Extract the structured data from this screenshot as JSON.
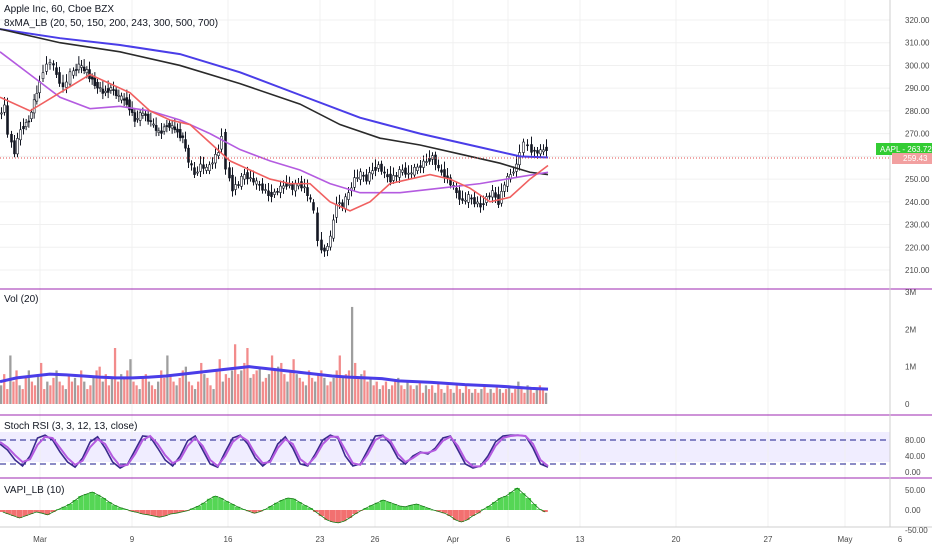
{
  "header": {
    "symbol_line": "Apple Inc, 60, Cboe BZX",
    "indicator_line": "8xMA_LB (20, 50, 150, 200, 243, 300, 500, 700)"
  },
  "price_panel": {
    "y_ticks": [
      "320.00",
      "310.00",
      "300.00",
      "290.00",
      "280.00",
      "270.00",
      "260.00",
      "250.00",
      "240.00",
      "230.00",
      "220.00",
      "210.00"
    ],
    "last_price_label": "AAPL - 263.72",
    "ref_price_label": "259.43",
    "colors": {
      "up_candle": "#131722",
      "ma_blue": "#4a3de8",
      "ma_black": "#2a2a2a",
      "ma_purple": "#b45be0",
      "ma_red": "#f06060",
      "last_badge": "#33cc33",
      "ref_line": "#e04848"
    }
  },
  "volume_panel": {
    "title": "Vol (20)",
    "y_ticks": [
      "3M",
      "2M",
      "1M",
      "0"
    ]
  },
  "stoch_panel": {
    "title": "Stoch RSI (3, 3, 12, 13, close)",
    "y_ticks": [
      "80.00",
      "40.00",
      "0.00"
    ]
  },
  "vapi_panel": {
    "title": "VAPI_LB (10)",
    "y_ticks": [
      "50.00",
      "0.00",
      "-50.00"
    ]
  },
  "x_axis": {
    "labels": [
      "Mar",
      "9",
      "16",
      "23",
      "26",
      "Apr",
      "6",
      "13",
      "20",
      "27",
      "May",
      "6"
    ]
  },
  "chart_data": [
    {
      "type": "line",
      "panel": "price",
      "title": "Apple Inc, 60, Cboe BZX",
      "ylim": [
        205,
        325
      ],
      "series": [
        {
          "name": "8xMA_LB (20, 50, 150, 200, 243, 300, 500, 700)",
          "values": []
        }
      ],
      "price_path": [
        [
          0,
          278
        ],
        [
          6,
          282
        ],
        [
          10,
          270
        ],
        [
          16,
          262
        ],
        [
          22,
          272
        ],
        [
          30,
          276
        ],
        [
          38,
          288
        ],
        [
          45,
          298
        ],
        [
          52,
          302
        ],
        [
          58,
          296
        ],
        [
          65,
          290
        ],
        [
          72,
          296
        ],
        [
          80,
          300
        ],
        [
          88,
          297
        ],
        [
          96,
          292
        ],
        [
          104,
          288
        ],
        [
          112,
          290
        ],
        [
          120,
          286
        ],
        [
          128,
          284
        ],
        [
          136,
          276
        ],
        [
          144,
          279
        ],
        [
          152,
          275
        ],
        [
          160,
          270
        ],
        [
          168,
          274
        ],
        [
          176,
          272
        ],
        [
          184,
          268
        ],
        [
          190,
          258
        ],
        [
          196,
          252
        ],
        [
          202,
          256
        ],
        [
          208,
          254
        ],
        [
          214,
          258
        ],
        [
          220,
          262
        ],
        [
          224,
          270
        ],
        [
          228,
          255
        ],
        [
          234,
          246
        ],
        [
          240,
          248
        ],
        [
          246,
          252
        ],
        [
          252,
          250
        ],
        [
          258,
          248
        ],
        [
          264,
          246
        ],
        [
          270,
          243
        ],
        [
          276,
          244
        ],
        [
          282,
          246
        ],
        [
          288,
          248
        ],
        [
          294,
          246
        ],
        [
          300,
          248
        ],
        [
          306,
          246
        ],
        [
          312,
          240
        ],
        [
          316,
          236
        ],
        [
          320,
          222
        ],
        [
          326,
          218
        ],
        [
          332,
          224
        ],
        [
          338,
          240
        ],
        [
          344,
          238
        ],
        [
          350,
          244
        ],
        [
          356,
          250
        ],
        [
          362,
          252
        ],
        [
          368,
          250
        ],
        [
          374,
          254
        ],
        [
          380,
          256
        ],
        [
          386,
          252
        ],
        [
          392,
          250
        ],
        [
          398,
          252
        ],
        [
          404,
          254
        ],
        [
          410,
          252
        ],
        [
          416,
          254
        ],
        [
          422,
          256
        ],
        [
          428,
          258
        ],
        [
          434,
          260
        ],
        [
          440,
          254
        ],
        [
          446,
          252
        ],
        [
          452,
          248
        ],
        [
          458,
          244
        ],
        [
          464,
          240
        ],
        [
          470,
          242
        ],
        [
          476,
          240
        ],
        [
          482,
          238
        ],
        [
          488,
          242
        ],
        [
          494,
          244
        ],
        [
          500,
          240
        ],
        [
          506,
          248
        ],
        [
          512,
          252
        ],
        [
          518,
          256
        ],
        [
          522,
          262
        ],
        [
          526,
          266
        ],
        [
          530,
          264
        ],
        [
          536,
          262
        ],
        [
          542,
          262
        ],
        [
          548,
          263.7
        ]
      ],
      "moving_averages": {
        "blue": [
          [
            0,
            316
          ],
          [
            60,
            312
          ],
          [
            120,
            309
          ],
          [
            180,
            305
          ],
          [
            240,
            297
          ],
          [
            300,
            287
          ],
          [
            360,
            277
          ],
          [
            420,
            270
          ],
          [
            480,
            264
          ],
          [
            520,
            260
          ],
          [
            548,
            259.5
          ]
        ],
        "black": [
          [
            0,
            316
          ],
          [
            60,
            310
          ],
          [
            120,
            306
          ],
          [
            180,
            300
          ],
          [
            240,
            292
          ],
          [
            300,
            283
          ],
          [
            340,
            274
          ],
          [
            380,
            268
          ],
          [
            420,
            265
          ],
          [
            460,
            261
          ],
          [
            500,
            257
          ],
          [
            530,
            253
          ],
          [
            548,
            252
          ]
        ],
        "purple": [
          [
            0,
            306
          ],
          [
            30,
            296
          ],
          [
            60,
            286
          ],
          [
            90,
            281
          ],
          [
            120,
            282
          ],
          [
            150,
            280
          ],
          [
            180,
            276
          ],
          [
            210,
            270
          ],
          [
            240,
            263
          ],
          [
            270,
            258
          ],
          [
            300,
            254
          ],
          [
            330,
            248
          ],
          [
            360,
            244
          ],
          [
            400,
            244
          ],
          [
            440,
            246
          ],
          [
            480,
            248
          ],
          [
            520,
            251
          ],
          [
            548,
            253
          ]
        ],
        "red": [
          [
            0,
            286
          ],
          [
            30,
            280
          ],
          [
            60,
            288
          ],
          [
            90,
            296
          ],
          [
            110,
            292
          ],
          [
            130,
            288
          ],
          [
            150,
            280
          ],
          [
            170,
            276
          ],
          [
            190,
            274
          ],
          [
            210,
            266
          ],
          [
            230,
            258
          ],
          [
            250,
            254
          ],
          [
            270,
            250
          ],
          [
            290,
            248
          ],
          [
            310,
            248
          ],
          [
            330,
            240
          ],
          [
            350,
            236
          ],
          [
            370,
            240
          ],
          [
            390,
            248
          ],
          [
            410,
            250
          ],
          [
            430,
            252
          ],
          [
            450,
            250
          ],
          [
            470,
            246
          ],
          [
            490,
            240
          ],
          [
            510,
            242
          ],
          [
            530,
            250
          ],
          [
            548,
            256
          ]
        ]
      }
    },
    {
      "type": "bar",
      "panel": "volume",
      "title": "Vol (20)",
      "ylim": [
        0,
        3000000
      ],
      "note_series": "histogram with moving average",
      "values": [
        0.5,
        0.8,
        0.4,
        1.3,
        0.6,
        0.9,
        0.5,
        0.4,
        0.7,
        0.9,
        0.6,
        0.5,
        0.8,
        1.1,
        0.4,
        0.6,
        0.5,
        0.7,
        0.9,
        0.6,
        0.5,
        0.4,
        0.8,
        0.6,
        0.7,
        0.5,
        0.9,
        0.6,
        0.4,
        0.5,
        0.7,
        0.9,
        1.0,
        0.6,
        0.8,
        0.5,
        0.7,
        1.5,
        0.6,
        0.8,
        0.7,
        0.9,
        1.2,
        0.6,
        0.5,
        0.4,
        0.7,
        0.8,
        0.6,
        0.5,
        0.4,
        0.6,
        0.9,
        0.7,
        1.3,
        0.8,
        0.6,
        0.5,
        0.7,
        0.9,
        1.0,
        0.6,
        0.5,
        0.4,
        0.6,
        1.1,
        0.8,
        0.7,
        0.5,
        0.4,
        0.9,
        1.2,
        0.6,
        0.8,
        0.7,
        0.9,
        1.6,
        0.8,
        0.9,
        1.1,
        1.5,
        0.7,
        0.8,
        0.9,
        1.0,
        0.6,
        0.7,
        0.8,
        1.3,
        0.9,
        1.0,
        1.1,
        0.8,
        0.6,
        0.9,
        1.2,
        0.8,
        0.7,
        0.6,
        0.5,
        0.9,
        0.7,
        0.6,
        0.8,
        0.9,
        0.7,
        0.5,
        0.6,
        0.7,
        0.9,
        1.3,
        0.7,
        0.8,
        0.9,
        2.6,
        1.1,
        0.7,
        0.8,
        0.9,
        0.6,
        0.7,
        0.5,
        0.6,
        0.4,
        0.5,
        0.6,
        0.4,
        0.5,
        0.6,
        0.7,
        0.5,
        0.4,
        0.6,
        0.5,
        0.4,
        0.5,
        0.6,
        0.3,
        0.5,
        0.4,
        0.5,
        0.3,
        0.6,
        0.4,
        0.3,
        0.5,
        0.4,
        0.3,
        0.5,
        0.4,
        0.3,
        0.5,
        0.4,
        0.3,
        0.4,
        0.3,
        0.4,
        0.5,
        0.3,
        0.4,
        0.3,
        0.5,
        0.4,
        0.3,
        0.4,
        0.5,
        0.3,
        0.4,
        0.6,
        0.4,
        0.3,
        0.5,
        0.4,
        0.3,
        0.4,
        0.5,
        0.4,
        0.3
      ],
      "ma": [
        0.6,
        0.7,
        0.75,
        0.8,
        0.78,
        0.75,
        0.72,
        0.7,
        0.7,
        0.72,
        0.75,
        0.8,
        0.85,
        0.9,
        0.95,
        1.0,
        0.95,
        0.9,
        0.85,
        0.8,
        0.75,
        0.72,
        0.7,
        0.68,
        0.62,
        0.6,
        0.58,
        0.55,
        0.52,
        0.5,
        0.48,
        0.45,
        0.42,
        0.4
      ]
    },
    {
      "type": "line",
      "panel": "stoch_rsi",
      "title": "Stoch RSI (3, 3, 12, 13, close)",
      "ylim": [
        0,
        100
      ],
      "levels": [
        80,
        20
      ],
      "series": [
        {
          "name": "K",
          "values": [
            70,
            55,
            30,
            15,
            40,
            85,
            92,
            80,
            50,
            25,
            12,
            35,
            75,
            88,
            60,
            25,
            10,
            20,
            55,
            90,
            88,
            60,
            30,
            15,
            40,
            78,
            90,
            55,
            20,
            12,
            50,
            85,
            92,
            70,
            35,
            15,
            30,
            70,
            88,
            60,
            20,
            15,
            45,
            80,
            92,
            85,
            40,
            15,
            20,
            55,
            90,
            92,
            70,
            35,
            20,
            40,
            50,
            45,
            60,
            85,
            90,
            55,
            20,
            10,
            15,
            40,
            75,
            90,
            92,
            92,
            90,
            60,
            20,
            12
          ]
        },
        {
          "name": "D",
          "values": [
            75,
            62,
            42,
            25,
            32,
            68,
            88,
            85,
            60,
            35,
            18,
            28,
            62,
            82,
            70,
            38,
            15,
            18,
            45,
            80,
            90,
            70,
            42,
            22,
            32,
            65,
            85,
            65,
            30,
            15,
            40,
            75,
            90,
            78,
            45,
            22,
            25,
            60,
            82,
            70,
            32,
            18,
            38,
            70,
            88,
            88,
            55,
            22,
            18,
            45,
            80,
            90,
            78,
            45,
            25,
            35,
            48,
            48,
            55,
            78,
            88,
            65,
            30,
            14,
            14,
            32,
            65,
            85,
            90,
            92,
            90,
            70,
            30,
            15
          ]
        }
      ]
    },
    {
      "type": "area",
      "panel": "vapi",
      "title": "VAPI_LB (10)",
      "ylim": [
        -60,
        60
      ],
      "values": [
        -5,
        -10,
        -15,
        -20,
        -15,
        -10,
        -5,
        -8,
        -12,
        -5,
        2,
        8,
        15,
        25,
        35,
        40,
        45,
        38,
        30,
        20,
        12,
        6,
        2,
        -3,
        -6,
        -10,
        -12,
        -15,
        -18,
        -15,
        -10,
        -8,
        -5,
        -2,
        4,
        10,
        18,
        28,
        35,
        30,
        22,
        15,
        8,
        2,
        -3,
        -8,
        -4,
        2,
        10,
        18,
        25,
        30,
        28,
        20,
        12,
        5,
        -5,
        -15,
        -25,
        -30,
        -32,
        -28,
        -20,
        -10,
        -2,
        5,
        12,
        18,
        25,
        20,
        15,
        10,
        8,
        12,
        15,
        10,
        5,
        0,
        -4,
        -8,
        -15,
        -25,
        -30,
        -25,
        -15,
        -8,
        2,
        10,
        20,
        30,
        35,
        45,
        55,
        42,
        30,
        15,
        2,
        -5
      ]
    }
  ]
}
